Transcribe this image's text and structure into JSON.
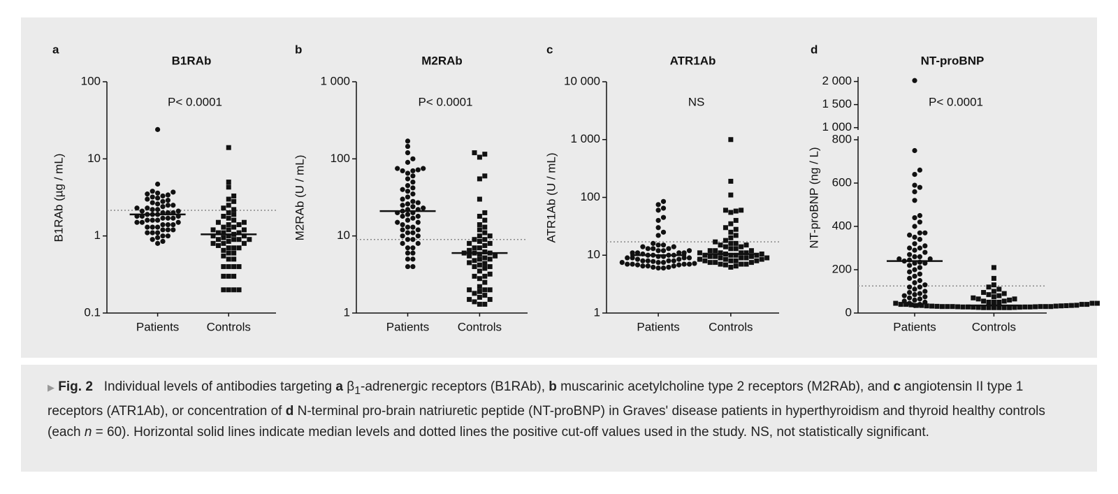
{
  "chart_data": [
    {
      "type": "strip",
      "label": "a",
      "title": "B1RAb",
      "ylabel": "B1RAb (µg / mL)",
      "annotation": "P< 0.0001",
      "log": true,
      "ylim": [
        0.1,
        100
      ],
      "yticks": [
        0.1,
        1,
        10,
        100
      ],
      "categories": [
        "Patients",
        "Controls"
      ],
      "markers": [
        "circle",
        "square"
      ],
      "color": "#111111",
      "values": [
        [
          24,
          4.7,
          3.8,
          3.7,
          3.6,
          3.5,
          3.4,
          3.3,
          3.2,
          3.1,
          3.0,
          2.9,
          2.8,
          2.7,
          2.6,
          2.5,
          2.5,
          2.4,
          2.3,
          2.3,
          2.2,
          2.2,
          2.1,
          2.1,
          2.0,
          2.0,
          2.0,
          1.9,
          1.9,
          1.9,
          1.8,
          1.8,
          1.8,
          1.7,
          1.7,
          1.7,
          1.6,
          1.6,
          1.6,
          1.5,
          1.5,
          1.5,
          1.4,
          1.4,
          1.4,
          1.3,
          1.3,
          1.3,
          1.2,
          1.2,
          1.2,
          1.1,
          1.1,
          1.1,
          1.0,
          1.0,
          0.95,
          0.9,
          0.85,
          0.8
        ],
        [
          14,
          5,
          4.3,
          3.3,
          3.0,
          2.8,
          2.5,
          2.3,
          2.2,
          2.0,
          1.9,
          1.8,
          1.7,
          1.6,
          1.5,
          1.5,
          1.4,
          1.4,
          1.3,
          1.3,
          1.2,
          1.2,
          1.1,
          1.1,
          1.05,
          1.0,
          1.0,
          1.0,
          0.95,
          0.9,
          0.9,
          0.9,
          0.85,
          0.8,
          0.8,
          0.75,
          0.7,
          0.7,
          0.65,
          0.6,
          0.6,
          0.55,
          0.5,
          0.5,
          0.4,
          0.4,
          0.4,
          0.4,
          0.3,
          0.3,
          0.3,
          0.2,
          0.2,
          0.2,
          0.2,
          0.8,
          0.9,
          1.1,
          1.2,
          0.7
        ]
      ],
      "medians": [
        1.9,
        1.05
      ],
      "cutoff": 2.15
    },
    {
      "type": "strip",
      "label": "b",
      "title": "M2RAb",
      "ylabel": "M2RAb (U / mL)",
      "annotation": "P< 0.0001",
      "log": true,
      "ylim": [
        1,
        1000
      ],
      "yticks": [
        1,
        10,
        100,
        {
          "value": 1000,
          "label": "1 000"
        }
      ],
      "categories": [
        "Patients",
        "Controls"
      ],
      "markers": [
        "circle",
        "square"
      ],
      "color": "#111111",
      "values": [
        [
          170,
          145,
          120,
          100,
          90,
          75,
          75,
          72,
          70,
          70,
          65,
          60,
          55,
          50,
          45,
          42,
          40,
          38,
          35,
          32,
          30,
          28,
          27,
          26,
          25,
          24,
          23,
          22,
          22,
          21,
          20,
          20,
          19,
          18,
          18,
          17,
          16,
          15,
          15,
          14,
          13,
          13,
          12,
          12,
          11,
          11,
          10,
          10,
          9,
          9,
          8,
          8,
          7,
          7,
          6,
          6,
          5,
          5,
          4,
          4
        ],
        [
          120,
          115,
          105,
          60,
          55,
          30,
          20,
          18,
          16,
          14,
          13,
          12,
          11,
          10,
          10,
          9,
          9,
          8.5,
          8,
          8,
          7.5,
          7,
          7,
          6.5,
          6,
          6,
          6,
          5.8,
          5.5,
          5.5,
          5,
          5,
          4.8,
          4.5,
          4.2,
          4,
          4,
          3.8,
          3.5,
          3.2,
          3,
          3,
          2.8,
          2.5,
          2.2,
          2,
          2,
          2,
          1.9,
          1.8,
          1.7,
          1.6,
          1.5,
          1.5,
          1.4,
          1.3,
          1.3,
          6.2,
          5.2,
          4.4
        ]
      ],
      "medians": [
        21,
        6
      ],
      "cutoff": 9
    },
    {
      "type": "strip",
      "label": "c",
      "title": "ATR1Ab",
      "ylabel": "ATR1Ab (U / mL)",
      "annotation": "NS",
      "log": true,
      "ylim": [
        1,
        10000
      ],
      "yticks": [
        1,
        10,
        100,
        {
          "value": 1000,
          "label": "1 000"
        },
        {
          "value": 10000,
          "label": "10 000"
        }
      ],
      "categories": [
        "Patients",
        "Controls"
      ],
      "markers": [
        "circle",
        "square"
      ],
      "color": "#111111",
      "values": [
        [
          85,
          75,
          65,
          60,
          45,
          40,
          30,
          25,
          22,
          16,
          15,
          15,
          14,
          14,
          13,
          13,
          13,
          12,
          12,
          12,
          11,
          11,
          11,
          11,
          10.5,
          10,
          10,
          10,
          10,
          9.5,
          9.5,
          9,
          9,
          9,
          9,
          8.5,
          8.5,
          8.5,
          8,
          8,
          8,
          8,
          7.8,
          7.5,
          7.5,
          7.5,
          7.2,
          7,
          7,
          7,
          7,
          6.8,
          6.8,
          6.5,
          6.5,
          6.5,
          6.2,
          6.2,
          6,
          6
        ],
        [
          1000,
          190,
          110,
          60,
          60,
          58,
          55,
          40,
          35,
          30,
          28,
          25,
          22,
          20,
          18,
          17,
          16,
          16,
          15,
          15,
          14,
          14,
          13,
          13,
          12,
          12,
          12,
          11,
          11,
          11,
          11,
          10.5,
          10.5,
          10,
          10,
          10,
          10,
          9.5,
          9.5,
          9.5,
          9,
          9,
          9,
          9,
          8.5,
          8.5,
          8.5,
          8,
          8,
          8,
          8,
          7.5,
          7.5,
          7.5,
          7,
          7,
          7,
          6.8,
          6.5,
          6.2
        ]
      ],
      "medians": [
        10,
        10.5
      ],
      "cutoff": 17
    },
    {
      "type": "strip",
      "label": "d",
      "title": "NT-proBNP",
      "ylabel": "NT-proBNP (ng / L)",
      "annotation": "P< 0.0001",
      "log": false,
      "ylim": [
        0,
        800
      ],
      "yticks": [
        0,
        200,
        400,
        600,
        800
      ],
      "ybreak_lim": [
        950,
        2100
      ],
      "ybreak_ticks": [
        {
          "value": 1000,
          "label": "1 000"
        },
        {
          "value": 1500,
          "label": "1 500"
        },
        {
          "value": 2000,
          "label": "2 000"
        }
      ],
      "categories": [
        "Patients",
        "Controls"
      ],
      "markers": [
        "circle",
        "square"
      ],
      "color": "#111111",
      "values": [
        [
          2020,
          750,
          660,
          640,
          590,
          580,
          560,
          520,
          450,
          440,
          420,
          400,
          370,
          370,
          360,
          350,
          340,
          320,
          310,
          300,
          290,
          280,
          270,
          260,
          250,
          245,
          240,
          235,
          230,
          220,
          210,
          200,
          190,
          180,
          170,
          160,
          150,
          140,
          130,
          120,
          110,
          100,
          95,
          90,
          85,
          80,
          75,
          70,
          65,
          60,
          55,
          50,
          45,
          40,
          35,
          230,
          250,
          260,
          300,
          120
        ],
        [
          210,
          160,
          130,
          120,
          110,
          100,
          95,
          90,
          85,
          80,
          75,
          70,
          65,
          65,
          60,
          55,
          55,
          50,
          50,
          50,
          45,
          45,
          45,
          40,
          40,
          40,
          40,
          38,
          36,
          35,
          35,
          35,
          34,
          33,
          33,
          32,
          32,
          31,
          30,
          30,
          30,
          30,
          30,
          30,
          29,
          29,
          28,
          28,
          28,
          28,
          27,
          27,
          26,
          26,
          25,
          25,
          25,
          25,
          25,
          25
        ]
      ],
      "medians": [
        240,
        35
      ],
      "cutoff": 125
    }
  ],
  "caption": {
    "parts": [
      "Fig. 2",
      "Individual levels of antibodies targeting ",
      "a",
      " β",
      "1",
      "-adrenergic receptors (B1RAb), ",
      "b",
      " muscarinic acetylcholine type 2 receptors (M2RAb), and ",
      "c",
      " angiotensin II type 1 receptors (ATR1Ab), or concentration of ",
      "d",
      " N-terminal pro-brain natriuretic peptide (NT-proBNP) in Graves' disease patients in hyperthyroidism and thyroid healthy controls (each ",
      "n",
      " = 60). Horizontal solid lines indicate median levels and dotted lines the positive cut-off values used in the study. NS, not statistically significant."
    ]
  }
}
